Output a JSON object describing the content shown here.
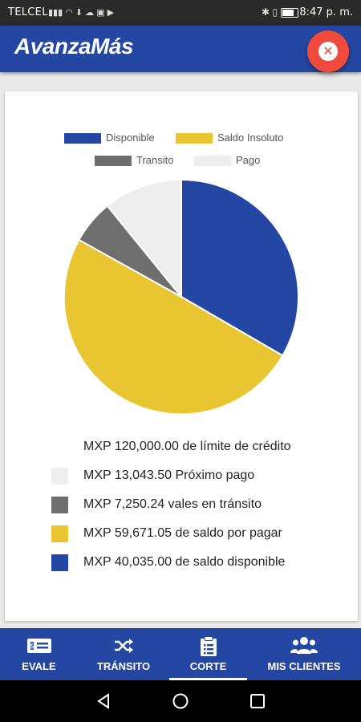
{
  "status_bar": {
    "carrier": "TELCEL",
    "time": "8:47 p. m."
  },
  "app_bar": {
    "logo": "AvanzaMás",
    "close_icon": "close-icon",
    "close_color": "#f04a3c"
  },
  "colors": {
    "brand_blue": "#2447a3",
    "yellow": "#e8c531",
    "gray": "#6e6e6e",
    "light": "#eeeeee"
  },
  "chart_data": {
    "type": "pie",
    "legend_position": "top",
    "slices": [
      {
        "label": "Disponible",
        "value": 40035.0,
        "color": "#2447a3"
      },
      {
        "label": "Saldo Insoluto",
        "value": 59671.05,
        "color": "#e8c531"
      },
      {
        "label": "Transito",
        "value": 7250.24,
        "color": "#6e6e6e"
      },
      {
        "label": "Pago",
        "value": 13043.5,
        "color": "#eeeeee"
      }
    ]
  },
  "summary": {
    "limit_text": "MXP 120,000.00 de límite de crédito",
    "rows": [
      {
        "text": "MXP 13,043.50 Próximo pago",
        "color": "#eeeeee"
      },
      {
        "text": "MXP 7,250.24 vales en tránsito",
        "color": "#6e6e6e"
      },
      {
        "text": "MXP 59,671.05 de saldo por pagar",
        "color": "#e8c531"
      },
      {
        "text": "MXP 40,035.00 de saldo disponible",
        "color": "#2447a3"
      }
    ]
  },
  "bottom_nav": {
    "items": [
      {
        "label": "EVALE",
        "icon": "money-bill-icon",
        "active": false
      },
      {
        "label": "TRÁNSITO",
        "icon": "shuffle-icon",
        "active": false
      },
      {
        "label": "CORTE",
        "icon": "clipboard-icon",
        "active": true
      },
      {
        "label": "MIS CLIENTES",
        "icon": "users-icon",
        "active": false
      }
    ]
  }
}
